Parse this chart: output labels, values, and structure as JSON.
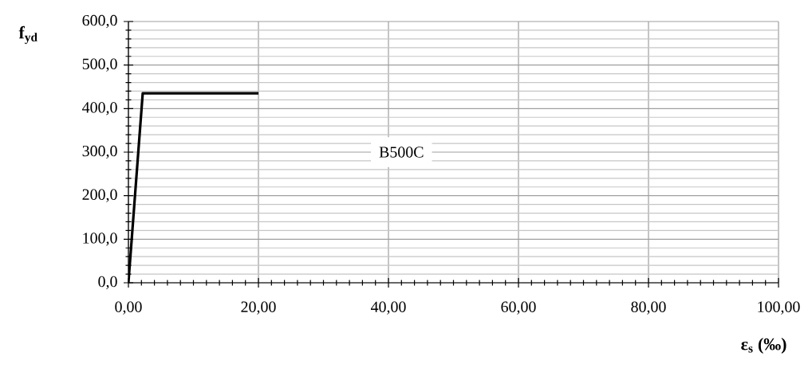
{
  "chart_data": {
    "type": "line",
    "xlabel": "ε$_{s}$ (‰)",
    "ylabel": "f$_{yd}$",
    "x": [
      0,
      2.2,
      20
    ],
    "series": [
      {
        "color": "#000000",
        "values": [
          0,
          435,
          435
        ]
      }
    ],
    "xlim": [
      0,
      100
    ],
    "ylim": [
      0,
      600
    ],
    "xticks": [
      {
        "value": 0,
        "label": "0,00"
      },
      {
        "value": 20,
        "label": "20,00"
      },
      {
        "value": 40,
        "label": "40,00"
      },
      {
        "value": 60,
        "label": "60,00"
      },
      {
        "value": 80,
        "label": "80,00"
      },
      {
        "value": 100,
        "label": "100,00"
      }
    ],
    "yticks": [
      {
        "value": 0,
        "label": "0,0"
      },
      {
        "value": 100,
        "label": "100,0"
      },
      {
        "value": 200,
        "label": "200,0"
      },
      {
        "value": 300,
        "label": "300,0"
      },
      {
        "value": 400,
        "label": "400,0"
      },
      {
        "value": 500,
        "label": "500,0"
      },
      {
        "value": 600,
        "label": "600,0"
      }
    ],
    "grid": true,
    "marker": "none",
    "line_style": "solid",
    "annotations": [
      "B500C"
    ]
  }
}
